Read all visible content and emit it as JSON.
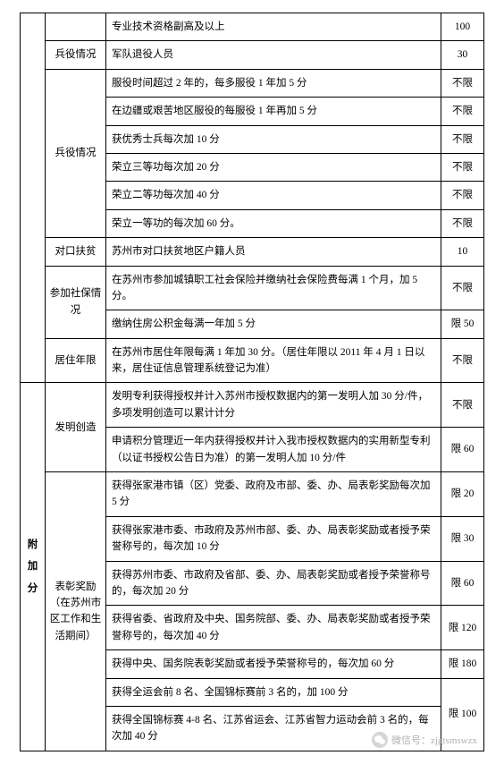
{
  "rows": [
    {
      "category": "",
      "catRows": 1,
      "desc": "专业技术资格副高及以上",
      "score": "100"
    },
    {
      "category": "兵役情况",
      "catRows": 1,
      "desc": "军队退役人员",
      "score": "30"
    },
    {
      "category": "兵役情况",
      "catRows": 6,
      "desc": "服役时间超过 2 年的，每多服役 1 年加 5 分",
      "score": "不限"
    },
    {
      "desc": "在边疆或艰苦地区服役的每服役 1 年再加 5 分",
      "score": "不限"
    },
    {
      "desc": "获优秀士兵每次加 10 分",
      "score": "不限"
    },
    {
      "desc": "荣立三等功每次加 20 分",
      "score": "不限"
    },
    {
      "desc": "荣立二等功每次加 40 分",
      "score": "不限"
    },
    {
      "desc": "荣立一等功的每次加 60 分。",
      "score": "不限"
    },
    {
      "category": "对口扶贫",
      "catRows": 1,
      "desc": "苏州市对口扶贫地区户籍人员",
      "score": "10"
    },
    {
      "category": "参加社保情况",
      "catRows": 2,
      "desc": "在苏州市参加城镇职工社会保险并缴纳社会保险费每满 1 个月，加 5 分。",
      "score": "不限"
    },
    {
      "desc": "缴纳住房公积金每满一年加 5 分",
      "score": "限 50"
    },
    {
      "category": "居住年限",
      "catRows": 1,
      "desc": "在苏州市居住年限每满 1 年加 30 分。（居住年限以 2011 年 4 月 1 日以来，居住证信息管理系统登记为准）",
      "score": "不限"
    }
  ],
  "lowerVertical": [
    "附",
    "加",
    "分"
  ],
  "lowerRows": [
    {
      "category": "发明创造",
      "catRows": 2,
      "desc": "发明专利获得授权并计入苏州市授权数据内的第一发明人加 30 分/件，多项发明创造可以累计计分",
      "score": "不限"
    },
    {
      "desc": "申请积分管理近一年内获得授权并计入我市授权数据内的实用新型专利（以证书授权公告日为准）的第一发明人加 10 分/件",
      "score": "限 60"
    },
    {
      "category": "表彰奖励（在苏州市区工作和生活期间）",
      "catRows": 7,
      "desc": "获得张家港市镇（区）党委、政府及市部、委、办、局表彰奖励每次加 5 分",
      "score": "限 20"
    },
    {
      "desc": "获得张家港市委、市政府及苏州市部、委、办、局表彰奖励或者授予荣誉称号的，每次加 10 分",
      "score": "限 30"
    },
    {
      "desc": "获得苏州市委、市政府及省部、委、办、局表彰奖励或者授予荣誉称号的，每次加 20 分",
      "score": "限 60"
    },
    {
      "desc": "获得省委、省政府及中央、国务院部、委、办、局表彰奖励或者授予荣誉称号的，每次加 40 分",
      "score": "限 120"
    },
    {
      "desc": "获得中央、国务院表彰奖励或者授予荣誉称号的，每次加 60 分",
      "score": "限 180"
    },
    {
      "desc": "获得全运会前 8 名、全国锦标赛前 3 名的，加 100 分",
      "score": ""
    },
    {
      "desc": "获得全国锦标赛 4-8 名、江苏省运会、江苏省智力运动会前 3 名的，每次加 40 分",
      "score": "限 100"
    }
  ],
  "wechatLabel": "微信号：zjgtsmswzx"
}
